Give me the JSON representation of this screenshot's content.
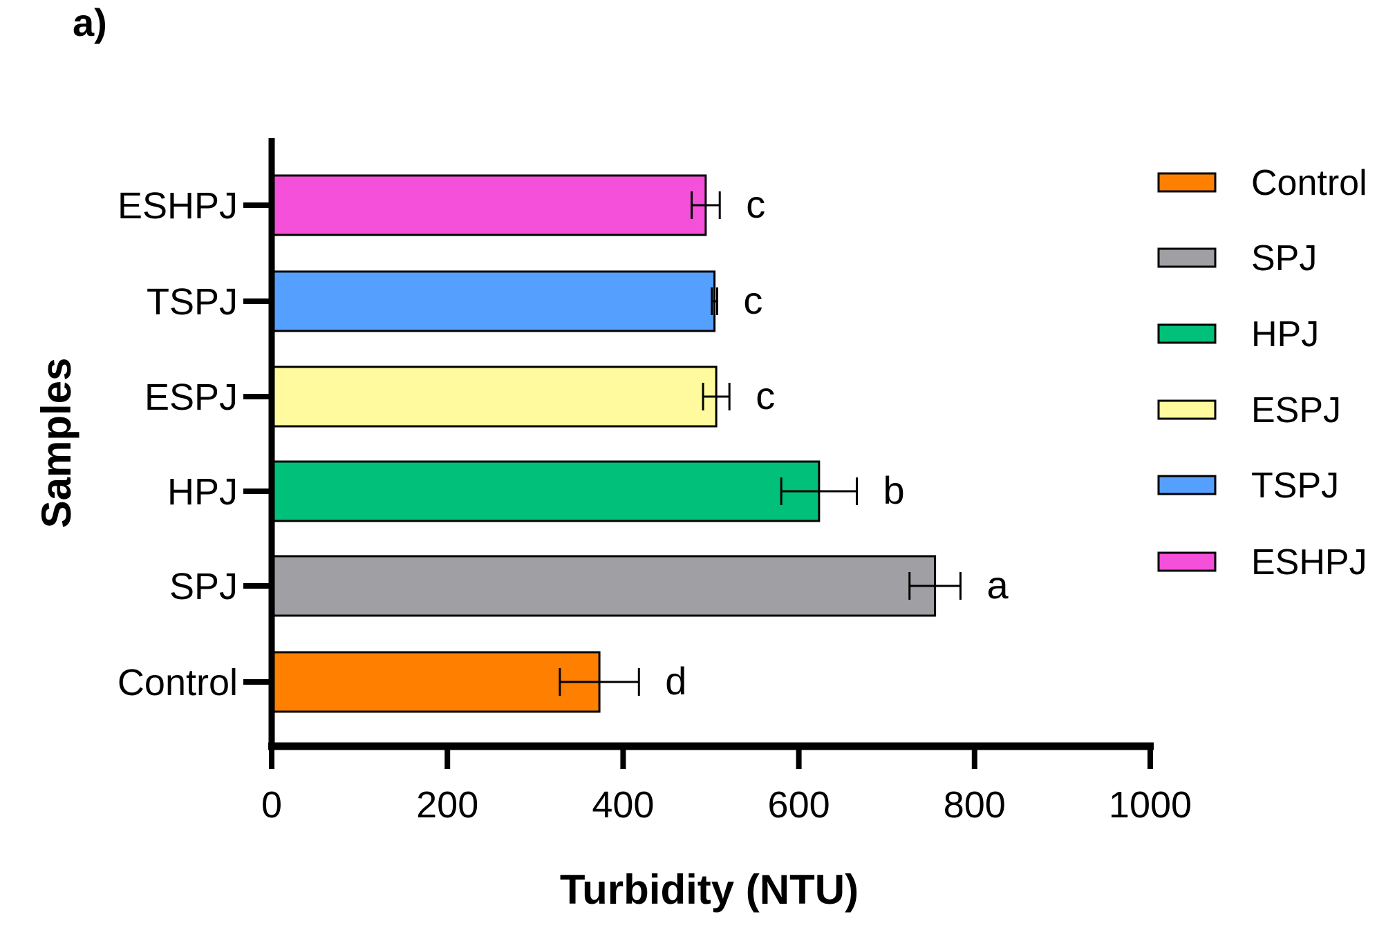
{
  "panel_label": "a)",
  "chart_data": {
    "type": "bar",
    "orientation": "horizontal",
    "title": "",
    "xlabel": "Turbidity (NTU)",
    "ylabel": "Samples",
    "xlim": [
      0,
      1000
    ],
    "xticks": [
      "0",
      "200",
      "400",
      "600",
      "800",
      "1000"
    ],
    "xtick_values": [
      0,
      200,
      400,
      600,
      800,
      1000
    ],
    "categories": [
      "Control",
      "SPJ",
      "HPJ",
      "ESPJ",
      "TSPJ",
      "ESHPJ"
    ],
    "values": [
      373,
      755,
      623,
      506,
      504,
      494
    ],
    "errors": [
      45,
      29,
      43,
      15,
      3,
      16
    ],
    "significance_letters": [
      "d",
      "a",
      "b",
      "c",
      "c",
      "c"
    ],
    "colors": [
      "#FF8000",
      "#A0A0A4",
      "#00C07A",
      "#FFFA9E",
      "#55A0FF",
      "#F550DA"
    ],
    "legend": {
      "placement": "right",
      "entries": [
        "Control",
        "SPJ",
        "HPJ",
        "ESPJ",
        "TSPJ",
        "ESHPJ"
      ]
    },
    "grid": false
  }
}
